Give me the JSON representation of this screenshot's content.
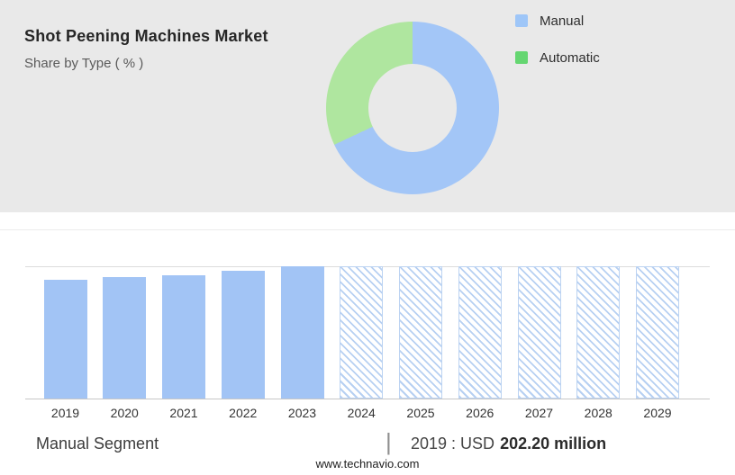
{
  "header": {
    "title": "Shot Peening Machines Market",
    "subtitle": "Share by Type ( % )",
    "legend": [
      {
        "label": "Manual",
        "color": "#9ec6f8"
      },
      {
        "label": "Automatic",
        "color": "#65d671"
      }
    ]
  },
  "chart_data": [
    {
      "type": "pie",
      "donut": true,
      "title": "Share by Type ( % )",
      "labels": [
        "Manual",
        "Automatic"
      ],
      "values": [
        68,
        32
      ],
      "colors": [
        "#a3c6f7",
        "#afe69f"
      ],
      "legend_position": "right",
      "units": "%"
    },
    {
      "type": "bar",
      "categories": [
        "2019",
        "2020",
        "2021",
        "2022",
        "2023",
        "2024",
        "2025",
        "2026",
        "2027",
        "2028",
        "2029"
      ],
      "values": [
        202.2,
        206.5,
        210.0,
        217.5,
        225.0,
        225.0,
        225.0,
        225.0,
        225.0,
        225.0,
        225.0
      ],
      "actual_years": [
        "2019",
        "2020",
        "2021",
        "2022",
        "2023"
      ],
      "forecast_years": [
        "2024",
        "2025",
        "2026",
        "2027",
        "2028",
        "2029"
      ],
      "forecast_style": "hatched",
      "xlabel": "",
      "ylabel": "USD million",
      "ylim": [
        0,
        225
      ],
      "grid": "top-line-only"
    }
  ],
  "footer": {
    "segment_label": "Manual Segment",
    "divider": "|",
    "value_prefix": "2019 : USD",
    "value_bold": "202.20 million",
    "website": "www.technavio.com"
  }
}
